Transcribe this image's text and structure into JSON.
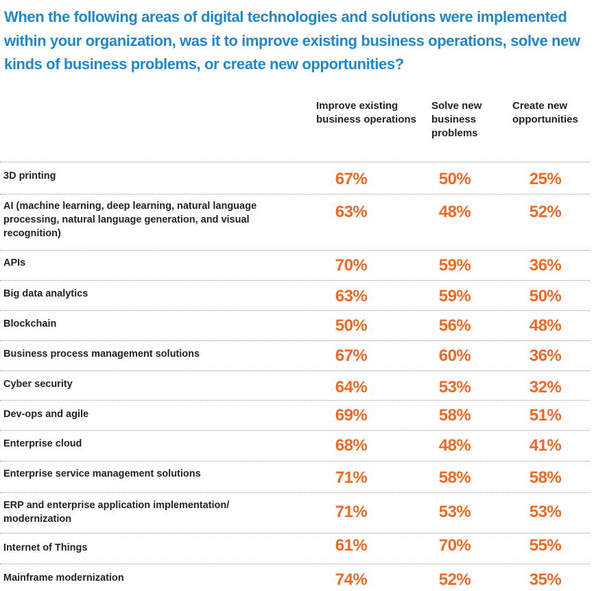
{
  "title": "When the following areas of digital technologies and solutions were implemented within your organization, was it to improve existing business operations, solve new kinds of business problems, or create new opportunities?",
  "colors": {
    "title": "#1e88cc",
    "value": "#f26722",
    "text": "#222222",
    "rule": "#9a9a9a"
  },
  "chart_data": {
    "type": "table",
    "title": "When the following areas of digital technologies and solutions were implemented within your organization, was it to improve existing business operations, solve new kinds of business problems, or create new opportunities?",
    "columns": [
      "Improve existing business operations",
      "Solve new business problems",
      "Create new opportunities"
    ],
    "rows": [
      {
        "label": "3D printing",
        "values": [
          "67%",
          "50%",
          "25%"
        ]
      },
      {
        "label": "AI (machine learning, deep learning, natural language processing, natural language generation, and visual recognition)",
        "values": [
          "63%",
          "48%",
          "52%"
        ]
      },
      {
        "label": "APIs",
        "values": [
          "70%",
          "59%",
          "36%"
        ]
      },
      {
        "label": "Big data analytics",
        "values": [
          "63%",
          "59%",
          "50%"
        ]
      },
      {
        "label": "Blockchain",
        "values": [
          "50%",
          "56%",
          "48%"
        ]
      },
      {
        "label": "Business process management solutions",
        "values": [
          "67%",
          "60%",
          "36%"
        ]
      },
      {
        "label": "Cyber security",
        "values": [
          "64%",
          "53%",
          "32%"
        ]
      },
      {
        "label": "Dev-ops and agile",
        "values": [
          "69%",
          "58%",
          "51%"
        ]
      },
      {
        "label": "Enterprise cloud",
        "values": [
          "68%",
          "48%",
          "41%"
        ]
      },
      {
        "label": "Enterprise service management solutions",
        "values": [
          "71%",
          "58%",
          "58%"
        ]
      },
      {
        "label": "ERP and enterprise application implementation/ modernization",
        "values": [
          "71%",
          "53%",
          "53%"
        ]
      },
      {
        "label": "Internet of Things",
        "values": [
          "61%",
          "70%",
          "55%"
        ]
      },
      {
        "label": "Mainframe modernization",
        "values": [
          "74%",
          "52%",
          "35%"
        ]
      }
    ]
  }
}
